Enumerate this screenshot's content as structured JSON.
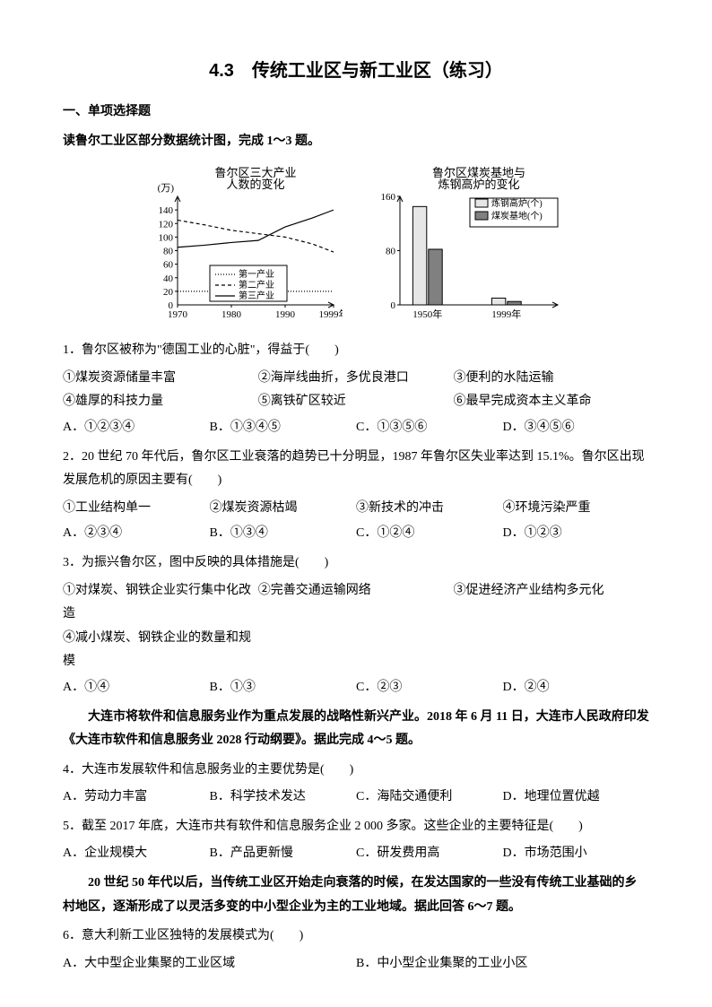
{
  "title": "4.3　传统工业区与新工业区（练习）",
  "section1": "一、单项选择题",
  "intro1": "读鲁尔工业区部分数据统计图，完成 1～3 题。",
  "chart1": {
    "type": "line",
    "title": "鲁尔区三大产业\n人数的变化",
    "y_unit": "(万)",
    "xlim": [
      1970,
      1999
    ],
    "ylim": [
      0,
      160
    ],
    "ytick_step": 20,
    "x_ticks": [
      "1970",
      "1980",
      "1990",
      "1999年"
    ],
    "series": [
      {
        "label": "第一产业",
        "dash": "1,2",
        "values": [
          [
            1970,
            20
          ],
          [
            1980,
            20
          ],
          [
            1990,
            20
          ],
          [
            1999,
            20
          ]
        ]
      },
      {
        "label": "第二产业",
        "dash": "4,3",
        "values": [
          [
            1970,
            125
          ],
          [
            1975,
            118
          ],
          [
            1980,
            110
          ],
          [
            1985,
            105
          ],
          [
            1990,
            100
          ],
          [
            1995,
            90
          ],
          [
            1999,
            78
          ]
        ]
      },
      {
        "label": "第三产业",
        "dash": "0",
        "values": [
          [
            1970,
            85
          ],
          [
            1975,
            88
          ],
          [
            1980,
            92
          ],
          [
            1985,
            95
          ],
          [
            1990,
            115
          ],
          [
            1995,
            128
          ],
          [
            1999,
            140
          ]
        ]
      }
    ],
    "legend_labels": [
      "第一产业",
      "第二产业",
      "第三产业"
    ],
    "axis_color": "#000000",
    "line_color": "#000000",
    "grid_color": "#bfbfbf",
    "background_color": "#ffffff",
    "label_fontsize": 11,
    "title_fontsize": 13
  },
  "chart2": {
    "type": "bar",
    "title": "鲁尔区煤炭基地与\n炼钢高炉的变化",
    "xlim_categories": [
      "1950年",
      "1999年"
    ],
    "ylim": [
      0,
      160
    ],
    "ytick_step": 80,
    "series": [
      {
        "label": "炼钢高炉(个)",
        "fill": "#e6e6e6",
        "values": [
          145,
          10
        ]
      },
      {
        "label": "煤炭基地(个)",
        "fill": "#808080",
        "values": [
          82,
          5
        ]
      }
    ],
    "axis_color": "#000000",
    "background_color": "#ffffff",
    "bar_width": 0.35,
    "label_fontsize": 11,
    "title_fontsize": 13
  },
  "q1": {
    "stem": "1．鲁尔区被称为\"德国工业的心脏\"，得益于(　　)",
    "conds": [
      "①煤炭资源储量丰富",
      "②海岸线曲折，多优良港口",
      "③便利的水陆运输",
      "④雄厚的科技力量",
      "⑤离铁矿区较近",
      "⑥最早完成资本主义革命"
    ],
    "opts": [
      "A．①②③④",
      "B．①③④⑤",
      "C．①③⑤⑥",
      "D．③④⑤⑥"
    ]
  },
  "q2": {
    "stem": "2．20 世纪 70 年代后，鲁尔区工业衰落的趋势已十分明显，1987 年鲁尔区失业率达到 15.1%。鲁尔区出现发展危机的原因主要有(　　)",
    "conds": [
      "①工业结构单一",
      "②煤炭资源枯竭",
      "③新技术的冲击",
      "④环境污染严重"
    ],
    "opts": [
      "A．②③④",
      "B．①③④",
      "C．①②④",
      "D．①②③"
    ]
  },
  "q3": {
    "stem": "3．为振兴鲁尔区，图中反映的具体措施是(　　)",
    "conds": [
      "①对煤炭、钢铁企业实行集中化改造",
      "②完善交通运输网络",
      "③促进经济产业结构多元化",
      "④减小煤炭、钢铁企业的数量和规模"
    ],
    "opts": [
      "A．①④",
      "B．①③",
      "C．②③",
      "D．②④"
    ]
  },
  "intro2": "大连市将软件和信息服务业作为重点发展的战略性新兴产业。2018 年 6 月 11 日，大连市人民政府印发《大连市软件和信息服务业 2028 行动纲要》。据此完成 4～5 题。",
  "q4": {
    "stem": "4．大连市发展软件和信息服务业的主要优势是(　　)",
    "opts": [
      "A．劳动力丰富",
      "B．科学技术发达",
      "C．海陆交通便利",
      "D．地理位置优越"
    ]
  },
  "q5": {
    "stem": "5．截至 2017 年底，大连市共有软件和信息服务企业 2 000 多家。这些企业的主要特征是(　　)",
    "opts": [
      "A．企业规模大",
      "B．产品更新慢",
      "C．研发费用高",
      "D．市场范围小"
    ]
  },
  "intro3": "20 世纪 50 年代以后，当传统工业区开始走向衰落的时候，在发达国家的一些没有传统工业基础的乡村地区，逐渐形成了以灵活多变的中小型企业为主的工业地域。据此回答 6～7 题。",
  "q6": {
    "stem": "6．意大利新工业区独特的发展模式为(　　)",
    "opts": [
      "A．大中型企业集聚的工业区域",
      "B．中小型企业集聚的工业小区"
    ]
  }
}
